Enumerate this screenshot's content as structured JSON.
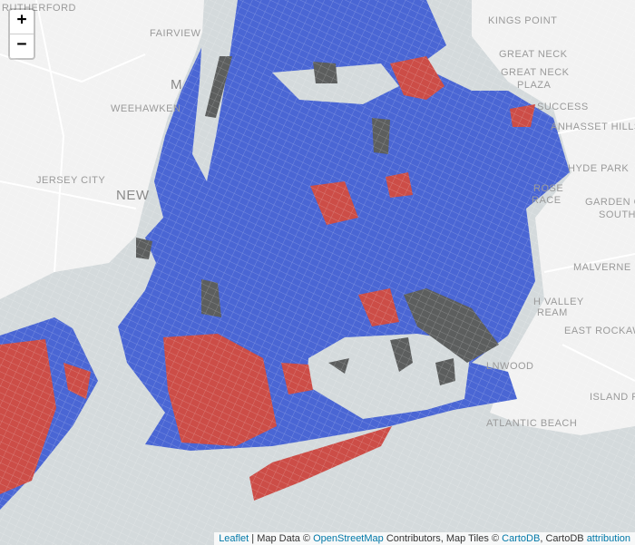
{
  "zoom": {
    "in": "+",
    "out": "−"
  },
  "places": [
    "RUTHERFORD",
    "FAIRVIEW",
    "WEEHAWKEN",
    "JERSEY CITY",
    "NEW",
    "M",
    "KINGS POINT",
    "GREAT NECK",
    "GREAT NECK",
    "PLAZA",
    "SUCCESS",
    "ANHASSET HILLS",
    "HYDE PARK",
    "GARDEN C",
    "SOUTH",
    "ROSE",
    "RACE",
    "MALVERNE",
    "H VALLEY",
    "REAM",
    "EAST ROCKAWAY",
    "LNWOOD",
    "ISLAND PA",
    "ATLANTIC BEACH"
  ],
  "attribution": {
    "leaflet": "Leaflet",
    "sep1": " | Map Data © ",
    "osm": "OpenStreetMap",
    "sep2": " Contributors, Map Tiles © ",
    "cartodb": "CartoDB",
    "sep3": ", CartoDB ",
    "link": "attribution"
  }
}
